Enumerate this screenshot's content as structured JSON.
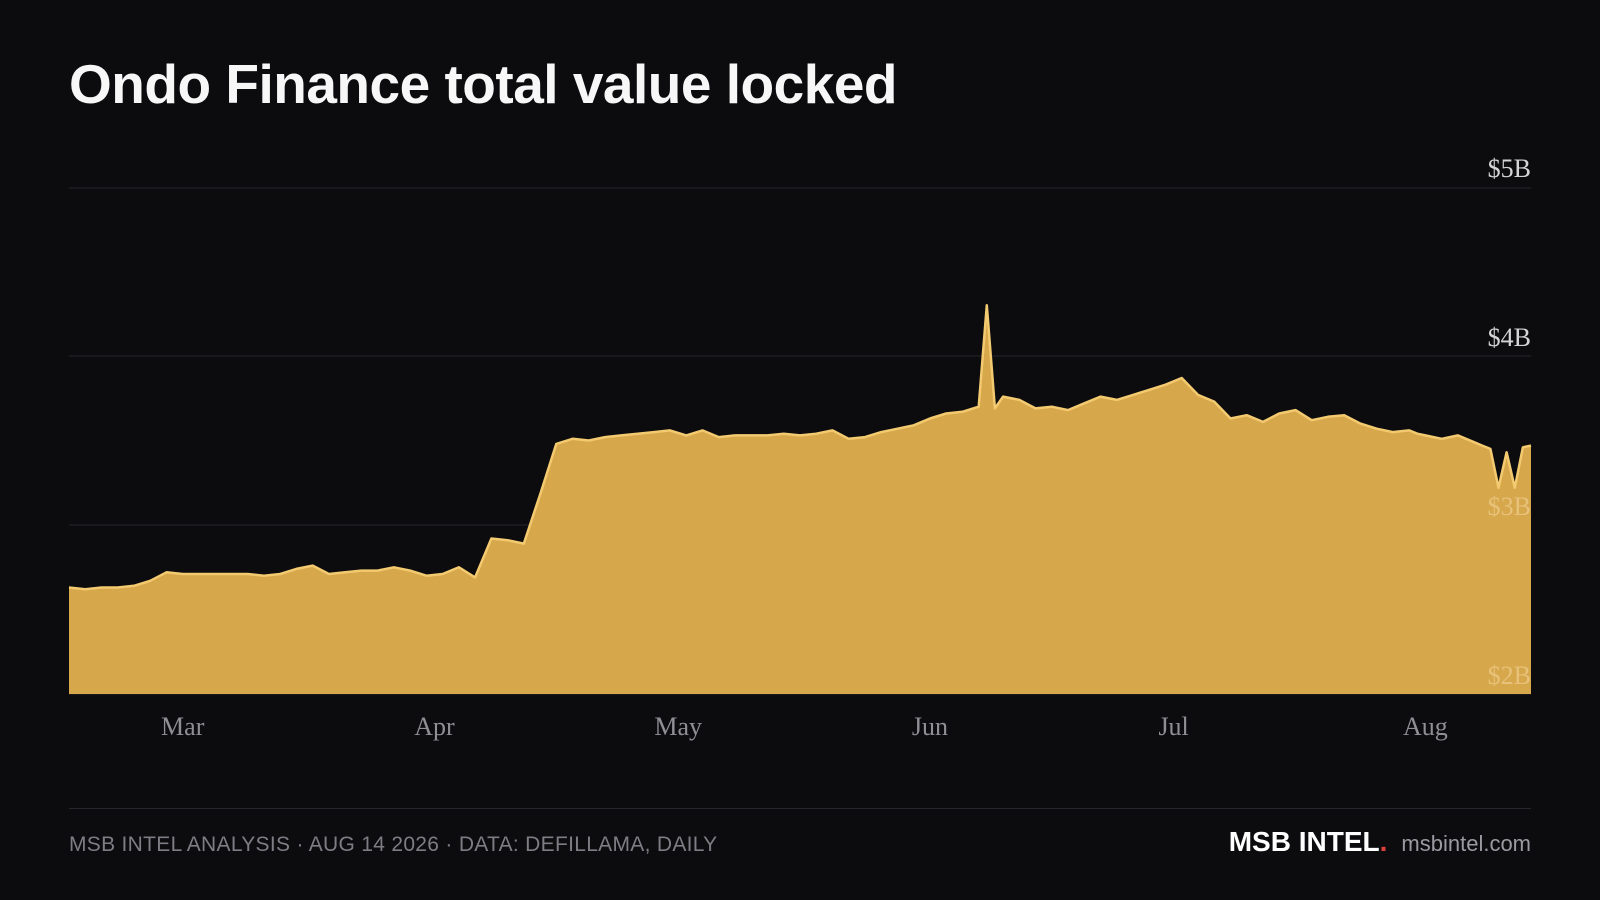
{
  "title": "Ondo Finance total value locked",
  "footer": {
    "credit": "MSB INTEL ANALYSIS · AUG 14 2026 · DATA: DEFILLAMA, DAILY",
    "brand": "MSB INTEL",
    "brand_dot": ".",
    "url": "msbintel.com"
  },
  "colors": {
    "background": "#0c0c0f",
    "area_fill": "#d6a74b",
    "area_line": "#f3ca70",
    "gridline": "#26262b",
    "tick_text": "#8f8f94",
    "tick_text_light": "#d4d4d4",
    "brand_dot": "#e0403a"
  },
  "chart_data": {
    "type": "area",
    "title": "Ondo Finance total value locked",
    "xlabel": "",
    "ylabel": "",
    "x_range": [
      "2026-02-15",
      "2026-08-14"
    ],
    "ylim": [
      2.0,
      5.0
    ],
    "y_unit": "$B",
    "grid": true,
    "gridlines": [
      4,
      3,
      2
    ],
    "x_ticks": [
      {
        "label": "Mar",
        "date": "2026-03-01"
      },
      {
        "label": "Apr",
        "date": "2026-04-01"
      },
      {
        "label": "May",
        "date": "2026-05-01"
      },
      {
        "label": "Jun",
        "date": "2026-06-01"
      },
      {
        "label": "Jul",
        "date": "2026-07-01"
      },
      {
        "label": "Aug",
        "date": "2026-08-01"
      }
    ],
    "y_ticks": [
      {
        "label": "$5B",
        "value": 5
      },
      {
        "label": "$4B",
        "value": 4
      },
      {
        "label": "$3B",
        "value": 3
      },
      {
        "label": "$2B",
        "value": 2
      }
    ],
    "series": [
      {
        "points": [
          [
            "2026-02-15",
            2.63
          ],
          [
            "2026-02-17",
            2.62
          ],
          [
            "2026-02-19",
            2.63
          ],
          [
            "2026-02-21",
            2.63
          ],
          [
            "2026-02-23",
            2.64
          ],
          [
            "2026-02-25",
            2.67
          ],
          [
            "2026-02-27",
            2.72
          ],
          [
            "2026-03-01",
            2.71
          ],
          [
            "2026-03-03",
            2.71
          ],
          [
            "2026-03-05",
            2.71
          ],
          [
            "2026-03-07",
            2.71
          ],
          [
            "2026-03-09",
            2.71
          ],
          [
            "2026-03-11",
            2.7
          ],
          [
            "2026-03-13",
            2.71
          ],
          [
            "2026-03-15",
            2.74
          ],
          [
            "2026-03-17",
            2.76
          ],
          [
            "2026-03-19",
            2.71
          ],
          [
            "2026-03-21",
            2.72
          ],
          [
            "2026-03-23",
            2.73
          ],
          [
            "2026-03-25",
            2.73
          ],
          [
            "2026-03-27",
            2.75
          ],
          [
            "2026-03-29",
            2.73
          ],
          [
            "2026-03-31",
            2.7
          ],
          [
            "2026-04-02",
            2.71
          ],
          [
            "2026-04-04",
            2.75
          ],
          [
            "2026-04-06",
            2.69
          ],
          [
            "2026-04-08",
            2.92
          ],
          [
            "2026-04-10",
            2.91
          ],
          [
            "2026-04-12",
            2.89
          ],
          [
            "2026-04-14",
            3.18
          ],
          [
            "2026-04-16",
            3.48
          ],
          [
            "2026-04-18",
            3.51
          ],
          [
            "2026-04-20",
            3.5
          ],
          [
            "2026-04-22",
            3.52
          ],
          [
            "2026-04-24",
            3.53
          ],
          [
            "2026-04-26",
            3.54
          ],
          [
            "2026-04-28",
            3.55
          ],
          [
            "2026-04-30",
            3.56
          ],
          [
            "2026-05-02",
            3.53
          ],
          [
            "2026-05-04",
            3.56
          ],
          [
            "2026-05-06",
            3.52
          ],
          [
            "2026-05-08",
            3.53
          ],
          [
            "2026-05-10",
            3.53
          ],
          [
            "2026-05-12",
            3.53
          ],
          [
            "2026-05-14",
            3.54
          ],
          [
            "2026-05-16",
            3.53
          ],
          [
            "2026-05-18",
            3.54
          ],
          [
            "2026-05-20",
            3.56
          ],
          [
            "2026-05-22",
            3.51
          ],
          [
            "2026-05-24",
            3.52
          ],
          [
            "2026-05-26",
            3.55
          ],
          [
            "2026-05-28",
            3.57
          ],
          [
            "2026-05-30",
            3.59
          ],
          [
            "2026-06-01",
            3.63
          ],
          [
            "2026-06-03",
            3.66
          ],
          [
            "2026-06-05",
            3.67
          ],
          [
            "2026-06-07",
            3.7
          ],
          [
            "2026-06-08",
            4.3
          ],
          [
            "2026-06-09",
            3.69
          ],
          [
            "2026-06-10",
            3.76
          ],
          [
            "2026-06-12",
            3.74
          ],
          [
            "2026-06-14",
            3.69
          ],
          [
            "2026-06-16",
            3.7
          ],
          [
            "2026-06-18",
            3.68
          ],
          [
            "2026-06-20",
            3.72
          ],
          [
            "2026-06-22",
            3.76
          ],
          [
            "2026-06-24",
            3.74
          ],
          [
            "2026-06-26",
            3.77
          ],
          [
            "2026-06-28",
            3.8
          ],
          [
            "2026-06-30",
            3.83
          ],
          [
            "2026-07-02",
            3.87
          ],
          [
            "2026-07-04",
            3.77
          ],
          [
            "2026-07-06",
            3.73
          ],
          [
            "2026-07-08",
            3.63
          ],
          [
            "2026-07-10",
            3.65
          ],
          [
            "2026-07-12",
            3.61
          ],
          [
            "2026-07-14",
            3.66
          ],
          [
            "2026-07-16",
            3.68
          ],
          [
            "2026-07-18",
            3.62
          ],
          [
            "2026-07-20",
            3.64
          ],
          [
            "2026-07-22",
            3.65
          ],
          [
            "2026-07-24",
            3.6
          ],
          [
            "2026-07-26",
            3.57
          ],
          [
            "2026-07-28",
            3.55
          ],
          [
            "2026-07-30",
            3.56
          ],
          [
            "2026-07-31",
            3.54
          ],
          [
            "2026-08-01",
            3.53
          ],
          [
            "2026-08-02",
            3.52
          ],
          [
            "2026-08-03",
            3.51
          ],
          [
            "2026-08-04",
            3.52
          ],
          [
            "2026-08-05",
            3.53
          ],
          [
            "2026-08-06",
            3.51
          ],
          [
            "2026-08-07",
            3.49
          ],
          [
            "2026-08-08",
            3.47
          ],
          [
            "2026-08-09",
            3.45
          ],
          [
            "2026-08-10",
            3.22
          ],
          [
            "2026-08-11",
            3.43
          ],
          [
            "2026-08-12",
            3.22
          ],
          [
            "2026-08-13",
            3.46
          ],
          [
            "2026-08-14",
            3.47
          ]
        ]
      }
    ]
  }
}
